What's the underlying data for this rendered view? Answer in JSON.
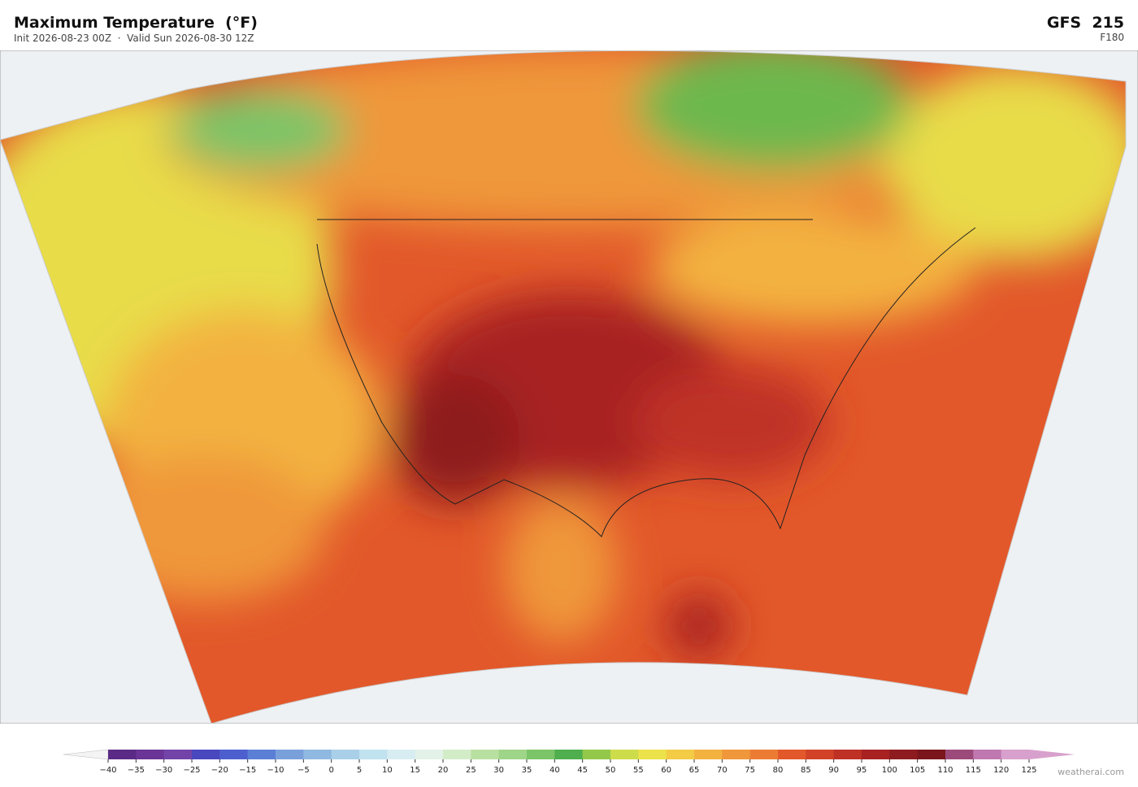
{
  "header": {
    "title": "Maximum Temperature  (°F)",
    "subtitle": "Init 2026-08-23 00Z  ·  Valid Sun 2026-08-30 12Z",
    "model": "GFS  215",
    "forecast_hour": "F180"
  },
  "colorbar": {
    "ticks": [
      {
        "value": -40,
        "label": "−40"
      },
      {
        "value": -35,
        "label": "−35"
      },
      {
        "value": -30,
        "label": "−30"
      },
      {
        "value": -25,
        "label": "−25"
      },
      {
        "value": -20,
        "label": "−20"
      },
      {
        "value": -15,
        "label": "−15"
      },
      {
        "value": -10,
        "label": "−10"
      },
      {
        "value": -5,
        "label": "−5"
      },
      0,
      5,
      10,
      15,
      20,
      25,
      30,
      35,
      40,
      45,
      50,
      55,
      60,
      65,
      70,
      75,
      80,
      85,
      90,
      95,
      100,
      105,
      110,
      115,
      120,
      125
    ],
    "colors": [
      "#5b2a86",
      "#6a3596",
      "#7344a8",
      "#4a48be",
      "#4d5fce",
      "#5c7fd6",
      "#7aa0dc",
      "#8fb9e0",
      "#a9d0e8",
      "#c1e2ef",
      "#d7edf2",
      "#e3f2e8",
      "#d3ecc8",
      "#b8e0a0",
      "#9fd589",
      "#7cc468",
      "#4fae4e",
      "#93c84a",
      "#cddc4a",
      "#ece24a",
      "#f3cb45",
      "#f3b240",
      "#ef973a",
      "#ec7c33",
      "#e2582a",
      "#d24227",
      "#bf3025",
      "#a82222",
      "#8e1b1f",
      "#7a161c",
      "#9c4a7a",
      "#c078b0",
      "#d8a0cc"
    ]
  },
  "watermark": "weatherai.com"
}
